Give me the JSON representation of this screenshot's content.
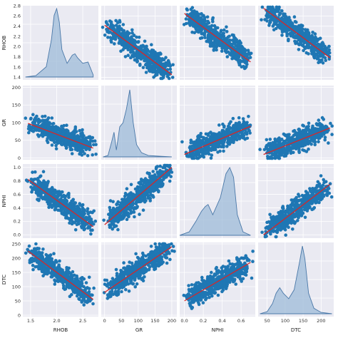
{
  "chart_data": {
    "type": "pairplot",
    "grid": true,
    "variables": [
      {
        "name": "RHOB",
        "range": [
          1.35,
          2.8
        ],
        "ticks": [
          1.5,
          2.0,
          2.5
        ],
        "yticks": [
          1.4,
          1.6,
          1.8,
          2.0,
          2.2,
          2.4,
          2.6,
          2.8
        ],
        "tick_labels": [
          "1.5",
          "2.0",
          "2.5"
        ],
        "ytick_labels": [
          "1.4",
          "1.6",
          "1.8",
          "2.0",
          "2.2",
          "2.4",
          "2.6",
          "2.8"
        ]
      },
      {
        "name": "GR",
        "range": [
          -10,
          215
        ],
        "ticks": [
          0,
          50,
          100,
          150,
          200
        ],
        "yticks": [
          0,
          50,
          100,
          150,
          200
        ],
        "tick_labels": [
          "0",
          "50",
          "100",
          "150",
          "200"
        ],
        "ytick_labels": [
          "0",
          "50",
          "100",
          "150",
          "200"
        ]
      },
      {
        "name": "NPHI",
        "range": [
          -0.05,
          0.75
        ],
        "ticks": [
          0.0,
          0.2,
          0.4,
          0.6
        ],
        "yticks": [
          0.0,
          0.2,
          0.4,
          0.6,
          0.8,
          1.0
        ],
        "tick_labels": [
          "0.0",
          "0.2",
          "0.4",
          "0.6"
        ],
        "ytick_labels": [
          "0.0",
          "0.2",
          "0.4",
          "0.6",
          "0.8",
          "1.0"
        ]
      },
      {
        "name": "DTC",
        "range": [
          25,
          235
        ],
        "ticks": [
          50,
          100,
          150,
          200
        ],
        "yticks": [
          0,
          50,
          100,
          150,
          200,
          250
        ],
        "tick_labels": [
          "50",
          "100",
          "150",
          "200"
        ],
        "ytick_labels": [
          "0",
          "50",
          "100",
          "150",
          "200",
          "250"
        ]
      }
    ],
    "y_ranges": {
      "RHOB": [
        1.35,
        2.8
      ],
      "GR": [
        -5,
        205
      ],
      "NPHI": [
        -0.05,
        1.05
      ],
      "DTC": [
        -5,
        255
      ]
    },
    "diagonal": {
      "type": "kde",
      "RHOB": {
        "x": [
          1.4,
          1.6,
          1.8,
          1.9,
          1.95,
          2.0,
          2.05,
          2.1,
          2.2,
          2.3,
          2.35,
          2.4,
          2.5,
          2.6,
          2.7
        ],
        "density": [
          0.0,
          0.02,
          0.15,
          0.55,
          0.9,
          1.0,
          0.8,
          0.4,
          0.2,
          0.32,
          0.34,
          0.28,
          0.2,
          0.22,
          0.03
        ]
      },
      "GR": {
        "x": [
          -5,
          10,
          20,
          28,
          35,
          45,
          55,
          65,
          75,
          85,
          95,
          110,
          130,
          160,
          200
        ],
        "density": [
          0.0,
          0.02,
          0.2,
          0.36,
          0.1,
          0.44,
          0.5,
          0.7,
          0.98,
          0.5,
          0.18,
          0.06,
          0.02,
          0.01,
          0.0
        ]
      },
      "NPHI": {
        "x": [
          -0.05,
          0.05,
          0.12,
          0.18,
          0.22,
          0.25,
          0.3,
          0.38,
          0.44,
          0.48,
          0.52,
          0.56,
          0.62,
          0.7
        ],
        "density": [
          0.0,
          0.05,
          0.2,
          0.35,
          0.42,
          0.45,
          0.3,
          0.55,
          0.9,
          0.99,
          0.85,
          0.3,
          0.05,
          0.0
        ]
      },
      "DTC": {
        "x": [
          30,
          50,
          65,
          75,
          85,
          95,
          110,
          125,
          140,
          148,
          155,
          165,
          180,
          200,
          230
        ],
        "density": [
          0.0,
          0.03,
          0.15,
          0.3,
          0.38,
          0.3,
          0.22,
          0.35,
          0.75,
          0.99,
          0.8,
          0.3,
          0.08,
          0.02,
          0.0
        ]
      }
    },
    "regression_lines": [
      {
        "x": "GR",
        "y": "RHOB",
        "points": [
          [
            0,
            2.42
          ],
          [
            200,
            1.45
          ]
        ]
      },
      {
        "x": "NPHI",
        "y": "RHOB",
        "points": [
          [
            0.0,
            2.65
          ],
          [
            0.7,
            1.7
          ]
        ]
      },
      {
        "x": "DTC",
        "y": "RHOB",
        "points": [
          [
            40,
            2.75
          ],
          [
            225,
            1.78
          ]
        ]
      },
      {
        "x": "RHOB",
        "y": "GR",
        "points": [
          [
            1.45,
            98
          ],
          [
            2.7,
            28
          ]
        ]
      },
      {
        "x": "NPHI",
        "y": "GR",
        "points": [
          [
            0.0,
            10
          ],
          [
            0.7,
            90
          ]
        ]
      },
      {
        "x": "DTC",
        "y": "GR",
        "points": [
          [
            40,
            10
          ],
          [
            225,
            85
          ]
        ]
      },
      {
        "x": "RHOB",
        "y": "NPHI",
        "points": [
          [
            1.45,
            0.82
          ],
          [
            2.7,
            0.12
          ]
        ]
      },
      {
        "x": "GR",
        "y": "NPHI",
        "points": [
          [
            0,
            0.15
          ],
          [
            200,
            1.0
          ]
        ]
      },
      {
        "x": "DTC",
        "y": "NPHI",
        "points": [
          [
            40,
            0.0
          ],
          [
            225,
            0.75
          ]
        ]
      },
      {
        "x": "RHOB",
        "y": "DTC",
        "points": [
          [
            1.45,
            225
          ],
          [
            2.7,
            55
          ]
        ]
      },
      {
        "x": "GR",
        "y": "DTC",
        "points": [
          [
            0,
            80
          ],
          [
            200,
            240
          ]
        ]
      },
      {
        "x": "NPHI",
        "y": "DTC",
        "points": [
          [
            0.0,
            50
          ],
          [
            0.7,
            185
          ]
        ]
      }
    ],
    "scatter_color": "#1f77b4",
    "line_color": "#d62728",
    "background_color": "#eaeaf2"
  }
}
